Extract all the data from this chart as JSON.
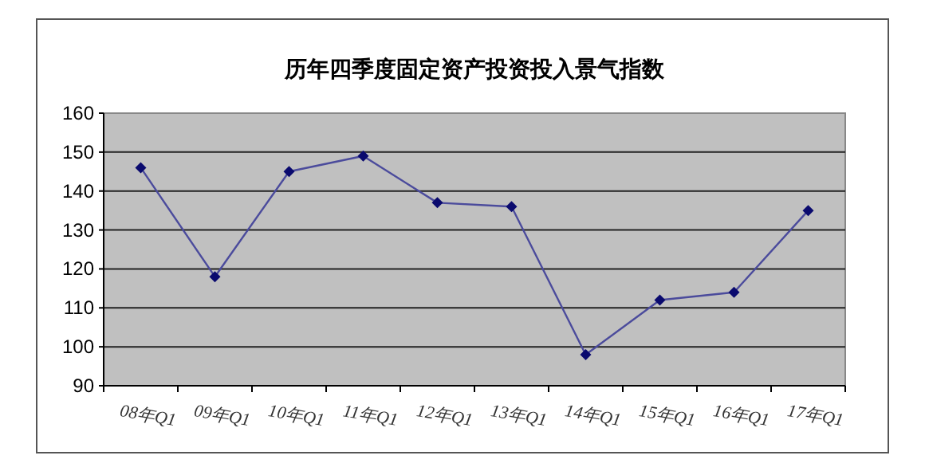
{
  "chart_data": {
    "type": "line",
    "title": "历年四季度固定资产投资投入景气指数",
    "categories": [
      "08年Q1",
      "09年Q1",
      "10年Q1",
      "11年Q1",
      "12年Q1",
      "13年Q1",
      "14年Q1",
      "15年Q1",
      "16年Q1",
      "17年Q1"
    ],
    "series": [
      {
        "color": "#4b4b9c",
        "values": [
          146,
          118,
          145,
          149,
          137,
          136,
          98,
          112,
          114,
          135
        ]
      }
    ],
    "ylim": [
      90,
      160
    ],
    "yticks": [
      90,
      100,
      110,
      120,
      130,
      140,
      150,
      160
    ],
    "grid": "y",
    "marker": "diamond",
    "line_style": "solid"
  }
}
